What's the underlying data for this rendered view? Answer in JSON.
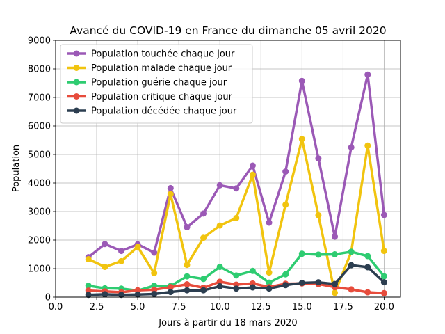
{
  "chart_data": {
    "type": "line",
    "title": "Avancé du COVID-19 en France du dimanche 05 avril 2020",
    "xlabel": "Jours à partir du 18 mars 2020",
    "ylabel": "Population",
    "xlim": [
      0,
      21
    ],
    "ylim": [
      0,
      9000
    ],
    "xticks": [
      0,
      2.5,
      5,
      7.5,
      10,
      12.5,
      15,
      17.5,
      20
    ],
    "xtick_labels": [
      "0.0",
      "2.5",
      "5.0",
      "7.5",
      "10.0",
      "12.5",
      "15.0",
      "17.5",
      "20.0"
    ],
    "yticks": [
      0,
      1000,
      2000,
      3000,
      4000,
      5000,
      6000,
      7000,
      8000,
      9000
    ],
    "ytick_labels": [
      "0",
      "1000",
      "2000",
      "3000",
      "4000",
      "5000",
      "6000",
      "7000",
      "8000",
      "9000"
    ],
    "grid": true,
    "legend_position": "top-left",
    "x": [
      2,
      3,
      4,
      5,
      6,
      7,
      8,
      9,
      10,
      11,
      12,
      13,
      14,
      15,
      16,
      17,
      18,
      19,
      20
    ],
    "series": [
      {
        "name": "Population touchée chaque jour",
        "color": "#9b59b6",
        "values": [
          1400,
          1860,
          1620,
          1850,
          1560,
          3820,
          2450,
          2930,
          3920,
          3810,
          4610,
          2610,
          4400,
          7580,
          4860,
          2120,
          5250,
          7800,
          2880
        ]
      },
      {
        "name": "Population malade chaque jour",
        "color": "#f1c40f",
        "values": [
          1330,
          1060,
          1260,
          1760,
          840,
          3610,
          1130,
          2080,
          2510,
          2770,
          4290,
          860,
          3240,
          5540,
          2870,
          150,
          1580,
          5310,
          1620
        ]
      },
      {
        "name": "Population guérie chaque jour",
        "color": "#2ecc71",
        "values": [
          400,
          310,
          300,
          230,
          400,
          390,
          730,
          640,
          1060,
          760,
          920,
          510,
          800,
          1520,
          1490,
          1500,
          1590,
          1440,
          730
        ]
      },
      {
        "name": "Population critique chaque jour",
        "color": "#e74c3c",
        "values": [
          230,
          200,
          170,
          240,
          260,
          350,
          450,
          330,
          540,
          440,
          480,
          350,
          470,
          480,
          460,
          350,
          270,
          170,
          140
        ]
      },
      {
        "name": "Population décédée chaque jour",
        "color": "#2c3e50",
        "values": [
          80,
          100,
          80,
          90,
          110,
          180,
          240,
          240,
          380,
          300,
          340,
          300,
          420,
          500,
          520,
          460,
          1120,
          1050,
          520
        ]
      }
    ]
  }
}
